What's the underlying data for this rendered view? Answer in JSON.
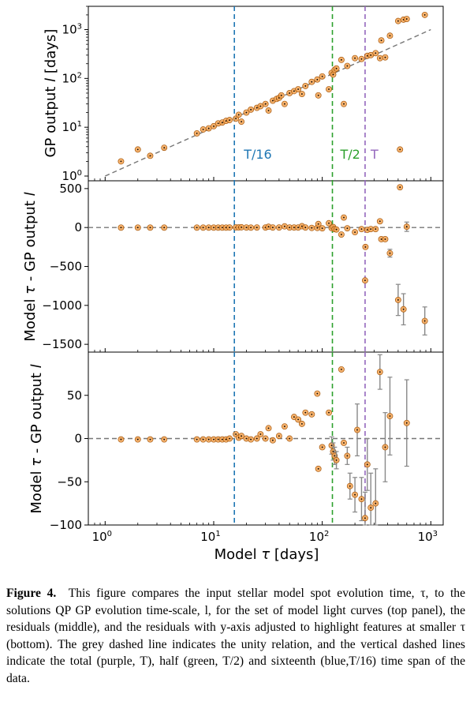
{
  "figure": {
    "caption_label": "Figure 4.",
    "caption_text": "This figure compares the input stellar model spot evolution time, τ, to the solutions QP GP evolution time-scale, l, for the set of model light curves (top panel), the residuals (middle), and the residuals with y-axis adjusted to highlight features at smaller τ (bottom). The grey dashed line indicates the unity relation, and the vertical dashed lines indicate the total (purple, T), half (green, T/2) and sixteenth (blue,T/16) time span of the data."
  },
  "chart_data": [
    {
      "type": "scatter",
      "panel": "top",
      "xlabel": "",
      "ylabel": "GP output l [days]",
      "xscale": "log",
      "yscale": "log",
      "xlim": [
        0.7,
        1300
      ],
      "ylim": [
        0.8,
        3000
      ],
      "yticks": [
        "10⁰",
        "10¹",
        "10²",
        "10³"
      ],
      "reference_line": "unity",
      "vlines": [
        {
          "label": "T/16",
          "x": 15.5,
          "color": "#1f77b4"
        },
        {
          "label": "T/2",
          "x": 124,
          "color": "#2ca02c"
        },
        {
          "label": "T",
          "x": 248,
          "color": "#9467bd"
        }
      ],
      "points": [
        [
          1.4,
          2
        ],
        [
          2,
          3.5
        ],
        [
          2.6,
          2.6
        ],
        [
          3.5,
          3.8
        ],
        [
          7,
          7.5
        ],
        [
          8,
          9
        ],
        [
          9,
          9.5
        ],
        [
          10,
          10.5
        ],
        [
          11,
          12
        ],
        [
          12,
          12.5
        ],
        [
          13,
          13.5
        ],
        [
          14,
          14
        ],
        [
          16,
          15
        ],
        [
          17,
          18
        ],
        [
          18,
          13
        ],
        [
          20,
          20
        ],
        [
          22,
          23
        ],
        [
          25,
          25
        ],
        [
          27,
          27
        ],
        [
          30,
          30
        ],
        [
          32,
          22
        ],
        [
          35,
          35
        ],
        [
          38,
          38
        ],
        [
          40,
          40
        ],
        [
          42,
          45
        ],
        [
          45,
          30
        ],
        [
          50,
          50
        ],
        [
          55,
          55
        ],
        [
          60,
          60
        ],
        [
          65,
          48
        ],
        [
          70,
          70
        ],
        [
          80,
          85
        ],
        [
          90,
          95
        ],
        [
          92,
          45
        ],
        [
          100,
          110
        ],
        [
          115,
          60
        ],
        [
          122,
          130
        ],
        [
          126,
          120
        ],
        [
          130,
          150
        ],
        [
          135,
          160
        ],
        [
          150,
          240
        ],
        [
          158,
          30
        ],
        [
          170,
          180
        ],
        [
          200,
          260
        ],
        [
          230,
          250
        ],
        [
          260,
          290
        ],
        [
          280,
          300
        ],
        [
          310,
          330
        ],
        [
          340,
          260
        ],
        [
          350,
          600
        ],
        [
          380,
          270
        ],
        [
          420,
          750
        ],
        [
          500,
          1500
        ],
        [
          520,
          3.5
        ],
        [
          560,
          1600
        ],
        [
          600,
          1650
        ],
        [
          880,
          2000
        ]
      ]
    },
    {
      "type": "scatter",
      "panel": "middle",
      "xlabel": "",
      "ylabel": "Model τ - GP output l",
      "xscale": "log",
      "xlim": [
        0.7,
        1300
      ],
      "ylim": [
        -1600,
        600
      ],
      "yticks": [
        500,
        0,
        -500,
        -1000,
        -1500
      ],
      "reference_line": "zero",
      "points": [
        [
          1.4,
          -1,
          0
        ],
        [
          2,
          -1,
          0
        ],
        [
          2.6,
          -1,
          0
        ],
        [
          3.5,
          -1,
          0
        ],
        [
          7,
          -1,
          0
        ],
        [
          8,
          -1,
          0
        ],
        [
          9,
          -1,
          0
        ],
        [
          10,
          -1,
          0
        ],
        [
          11,
          -1,
          0
        ],
        [
          12,
          -1,
          0
        ],
        [
          13,
          -1,
          0
        ],
        [
          14,
          0,
          0
        ],
        [
          16,
          1,
          0
        ],
        [
          17,
          1,
          0
        ],
        [
          18,
          3,
          0
        ],
        [
          20,
          0,
          0
        ],
        [
          22,
          -1,
          0
        ],
        [
          25,
          0,
          0
        ],
        [
          30,
          0,
          0
        ],
        [
          32,
          10,
          0
        ],
        [
          35,
          0,
          0
        ],
        [
          40,
          0,
          0
        ],
        [
          45,
          15,
          0
        ],
        [
          50,
          0,
          0
        ],
        [
          55,
          0,
          0
        ],
        [
          60,
          0,
          0
        ],
        [
          65,
          17,
          0
        ],
        [
          70,
          0,
          0
        ],
        [
          80,
          -5,
          0
        ],
        [
          90,
          -5,
          0
        ],
        [
          92,
          45,
          0
        ],
        [
          100,
          -10,
          0
        ],
        [
          115,
          55,
          0
        ],
        [
          122,
          -8,
          0
        ],
        [
          126,
          6,
          0
        ],
        [
          130,
          -20,
          0
        ],
        [
          135,
          -25,
          0
        ],
        [
          150,
          -90,
          0
        ],
        [
          158,
          128,
          0
        ],
        [
          170,
          -10,
          0
        ],
        [
          200,
          -60,
          0
        ],
        [
          230,
          -20,
          0
        ],
        [
          248,
          -680,
          0
        ],
        [
          250,
          -250,
          0
        ],
        [
          260,
          -30,
          0
        ],
        [
          280,
          -20,
          0
        ],
        [
          310,
          -20,
          0
        ],
        [
          340,
          80,
          0
        ],
        [
          350,
          -150,
          0
        ],
        [
          380,
          -150,
          0
        ],
        [
          420,
          -330,
          50
        ],
        [
          500,
          -930,
          200
        ],
        [
          520,
          517,
          0
        ],
        [
          560,
          -1050,
          200
        ],
        [
          600,
          10,
          60
        ],
        [
          880,
          -1200,
          180
        ]
      ]
    },
    {
      "type": "scatter",
      "panel": "bottom",
      "xlabel": "Model τ [days]",
      "ylabel": "Model τ - GP output l",
      "xscale": "log",
      "xlim": [
        0.7,
        1300
      ],
      "ylim": [
        -100,
        100
      ],
      "yticks": [
        50,
        0,
        -50,
        -100
      ],
      "xticks": [
        "10⁰",
        "10¹",
        "10²",
        "10³"
      ],
      "reference_line": "zero",
      "points": [
        [
          1.4,
          -1,
          0
        ],
        [
          2,
          -1,
          0
        ],
        [
          2.6,
          -1,
          0
        ],
        [
          3.5,
          -1,
          0
        ],
        [
          7,
          -1,
          0
        ],
        [
          8,
          -1,
          0
        ],
        [
          9,
          -1,
          0
        ],
        [
          10,
          -1,
          0
        ],
        [
          11,
          -1,
          0
        ],
        [
          12,
          -1,
          0
        ],
        [
          13,
          -1,
          0
        ],
        [
          14,
          0,
          0
        ],
        [
          16,
          5,
          0
        ],
        [
          17,
          1,
          0
        ],
        [
          18,
          3,
          0
        ],
        [
          20,
          0,
          0
        ],
        [
          22,
          -1,
          0
        ],
        [
          25,
          0,
          0
        ],
        [
          27,
          5,
          0
        ],
        [
          30,
          0,
          0
        ],
        [
          32,
          12,
          0
        ],
        [
          35,
          -2,
          0
        ],
        [
          40,
          3,
          0
        ],
        [
          45,
          14,
          0
        ],
        [
          50,
          0,
          0
        ],
        [
          55,
          25,
          0
        ],
        [
          60,
          22,
          0
        ],
        [
          65,
          17,
          0
        ],
        [
          70,
          30,
          0
        ],
        [
          80,
          28,
          0
        ],
        [
          90,
          52,
          0
        ],
        [
          92,
          -35,
          0
        ],
        [
          100,
          -10,
          0
        ],
        [
          115,
          30,
          0
        ],
        [
          122,
          -8,
          10
        ],
        [
          126,
          -15,
          10
        ],
        [
          130,
          -20,
          10
        ],
        [
          135,
          -25,
          10
        ],
        [
          150,
          80,
          0
        ],
        [
          158,
          -5,
          0
        ],
        [
          170,
          -20,
          10
        ],
        [
          180,
          -55,
          15
        ],
        [
          200,
          -65,
          20
        ],
        [
          210,
          10,
          30
        ],
        [
          230,
          -70,
          25
        ],
        [
          248,
          -92,
          30
        ],
        [
          260,
          -30,
          30
        ],
        [
          280,
          -80,
          40
        ],
        [
          310,
          -75,
          40
        ],
        [
          340,
          77,
          20
        ],
        [
          380,
          -10,
          40
        ],
        [
          420,
          26,
          45
        ],
        [
          600,
          18,
          50
        ]
      ]
    }
  ]
}
